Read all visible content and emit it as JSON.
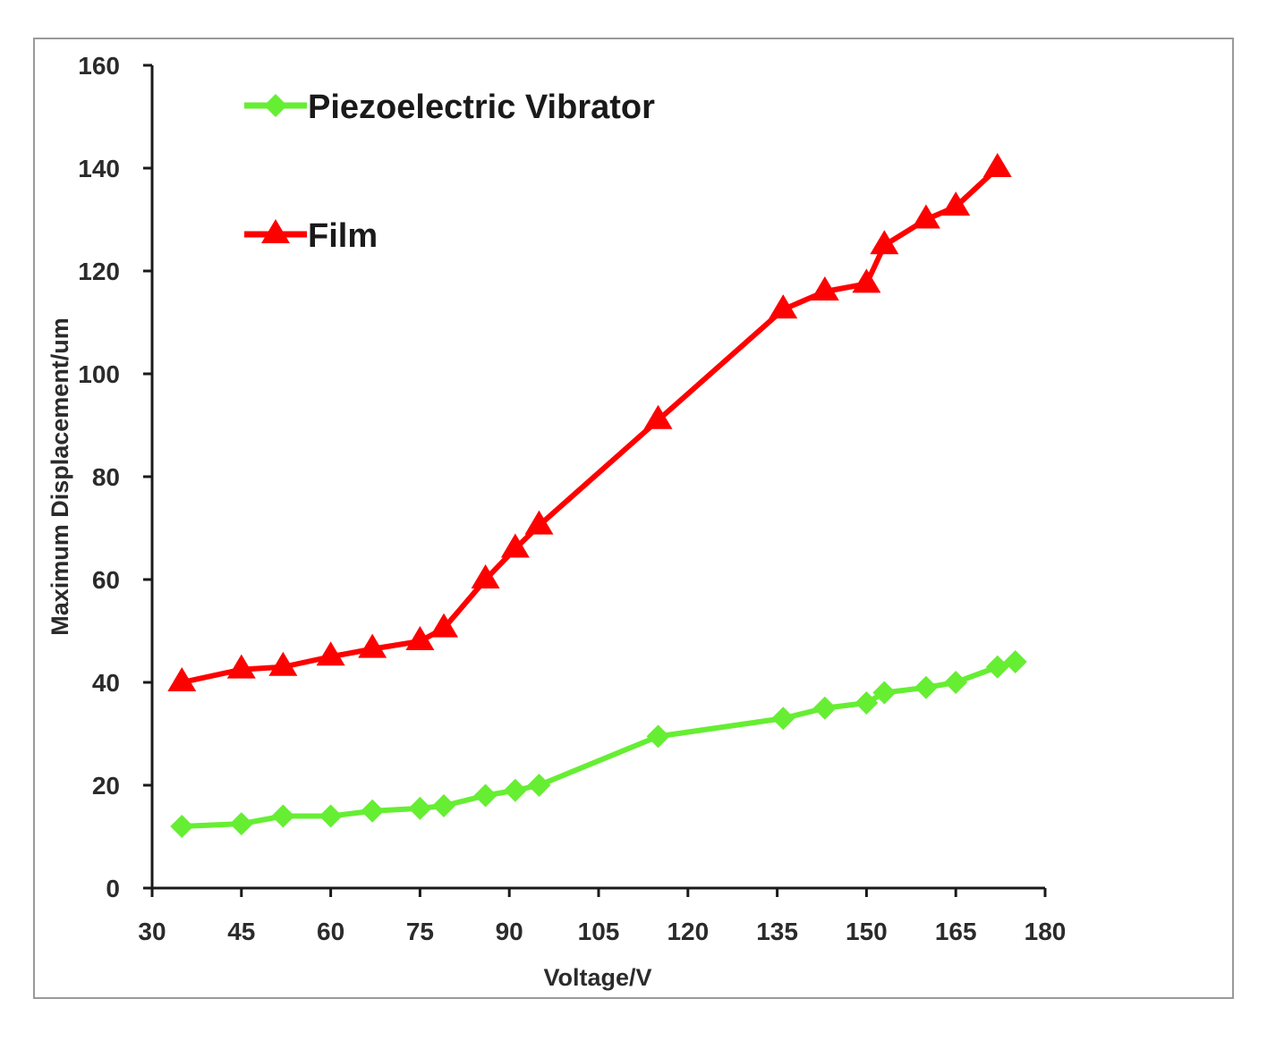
{
  "chart_data": {
    "type": "line",
    "title": "",
    "xlabel": "Voltage/V",
    "ylabel": "Maximum Displacement/um",
    "xlim": [
      30,
      180
    ],
    "ylim": [
      0,
      160
    ],
    "x_ticks": [
      30,
      45,
      60,
      75,
      90,
      105,
      120,
      135,
      150,
      165,
      180
    ],
    "y_ticks": [
      0,
      20,
      40,
      60,
      80,
      100,
      120,
      140,
      160
    ],
    "grid": false,
    "legend_position": "top-left",
    "series": [
      {
        "name": "Piezoelectric Vibrator",
        "color": "#66ee33",
        "marker": "diamond",
        "x": [
          35,
          45,
          52,
          60,
          67,
          75,
          79,
          86,
          91,
          95,
          115,
          136,
          143,
          150,
          153,
          160,
          165,
          172,
          175
        ],
        "y": [
          12,
          12.5,
          14,
          14,
          15,
          15.5,
          16,
          18,
          19,
          20,
          29.5,
          33,
          35,
          36,
          38,
          39,
          40,
          43,
          44
        ]
      },
      {
        "name": "Film",
        "color": "#ff0000",
        "marker": "triangle",
        "x": [
          35,
          45,
          52,
          60,
          67,
          75,
          79,
          86,
          91,
          95,
          115,
          136,
          143,
          150,
          153,
          160,
          165,
          172
        ],
        "y": [
          40,
          42.5,
          43,
          45,
          46.5,
          48,
          50.5,
          60,
          66,
          70.5,
          91,
          112.5,
          116,
          117.5,
          125,
          130,
          132.5,
          140
        ]
      }
    ]
  }
}
